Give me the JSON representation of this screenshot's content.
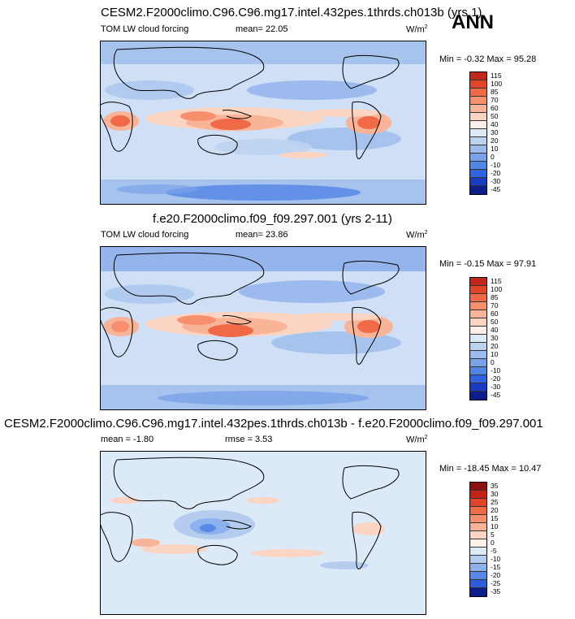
{
  "season": "ANN",
  "panels": [
    {
      "title": "CESM2.F2000climo.C96.C96.mg17.intel.432pes.1thrds.ch013b (yrs 1)",
      "left_label": "TOM LW cloud forcing",
      "center_label": "mean=  22.05",
      "units": "W/m",
      "units_exp": "2",
      "minmax": "Min =  -0.32 Max =  95.28",
      "levels": [
        "115",
        "100",
        "85",
        "70",
        "60",
        "50",
        "40",
        "30",
        "20",
        "10",
        "0",
        "-10",
        "-20",
        "-30",
        "-45"
      ],
      "colors": [
        "#c0281e",
        "#e0452a",
        "#f06a48",
        "#f58f6e",
        "#f9b497",
        "#fbd5c2",
        "#fdf0e8",
        "#dce9f7",
        "#bcd3f0",
        "#9bbcec",
        "#7aa2e8",
        "#5385e6",
        "#2f63df",
        "#1a3cc3",
        "#0b1e8a"
      ]
    },
    {
      "title": "f.e20.F2000climo.f09_f09.297.001 (yrs 2-11)",
      "left_label": "TOM LW cloud forcing",
      "center_label": "mean=  23.86",
      "units": "W/m",
      "units_exp": "2",
      "minmax": "Min =  -0.15 Max =  97.91",
      "levels": [
        "115",
        "100",
        "85",
        "70",
        "60",
        "50",
        "40",
        "30",
        "20",
        "10",
        "0",
        "-10",
        "-20",
        "-30",
        "-45"
      ],
      "colors": [
        "#c0281e",
        "#e0452a",
        "#f06a48",
        "#f58f6e",
        "#f9b497",
        "#fbd5c2",
        "#fdf0e8",
        "#dce9f7",
        "#bcd3f0",
        "#9bbcec",
        "#7aa2e8",
        "#5385e6",
        "#2f63df",
        "#1a3cc3",
        "#0b1e8a"
      ]
    },
    {
      "title": "CESM2.F2000climo.C96.C96.mg17.intel.432pes.1thrds.ch013b - f.e20.F2000climo.f09_f09.297.001",
      "left_label": "mean =  -1.80",
      "center_label": "rmse =   3.53",
      "units": "W/m",
      "units_exp": "2",
      "minmax": "Min = -18.45 Max =  10.47",
      "levels": [
        "35",
        "30",
        "25",
        "20",
        "15",
        "10",
        "5",
        "0",
        "-5",
        "-10",
        "-15",
        "-20",
        "-25",
        "-35"
      ],
      "colors": [
        "#8c1010",
        "#c42418",
        "#e0452a",
        "#f06a48",
        "#f58f6e",
        "#f9b497",
        "#fbd5c2",
        "#fdf0e8",
        "#dce9f7",
        "#b4cdef",
        "#8cb1ec",
        "#5a88e6",
        "#2f5cd8",
        "#0b1e8a"
      ]
    }
  ]
}
